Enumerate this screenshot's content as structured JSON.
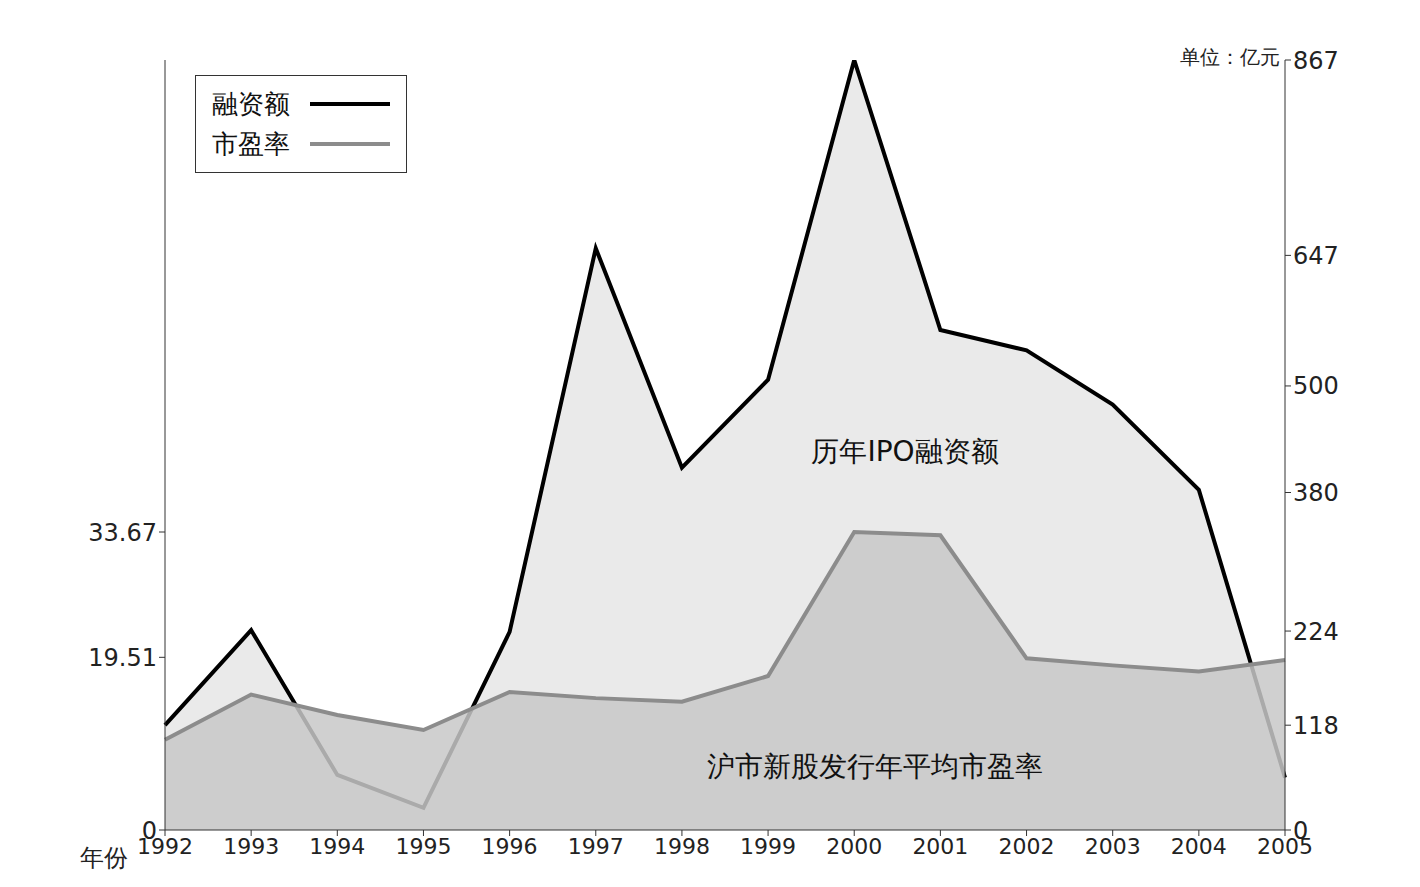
{
  "chart_data": {
    "type": "area",
    "categories": [
      "1992",
      "1993",
      "1994",
      "1995",
      "1996",
      "1997",
      "1998",
      "1999",
      "2000",
      "2001",
      "2002",
      "2003",
      "2004",
      "2005"
    ],
    "series": [
      {
        "name": "融资额",
        "color": "#000000",
        "axis": "y2",
        "values": [
          118,
          225,
          62,
          25,
          223,
          655,
          408,
          507,
          867,
          563,
          540,
          479,
          383,
          59
        ]
      },
      {
        "name": "市盈率",
        "color": "#8c8c8c",
        "axis": "y",
        "values": [
          10.2,
          15.3,
          13.0,
          11.3,
          15.6,
          14.9,
          14.5,
          17.4,
          33.67,
          33.3,
          19.4,
          18.6,
          17.9,
          19.2
        ]
      }
    ],
    "x_label": "年份",
    "y2_label": "单位：亿元",
    "ylim": [
      0,
      87
    ],
    "yticks": [
      0,
      19.51,
      33.67
    ],
    "y2lim": [
      0,
      867
    ],
    "y2ticks": [
      0,
      118,
      224,
      380,
      500,
      647,
      867
    ],
    "annotations": [
      "历年IPO融资额",
      "沪市新股发行年平均市盈率"
    ],
    "legend": "top-left",
    "grid": false
  }
}
